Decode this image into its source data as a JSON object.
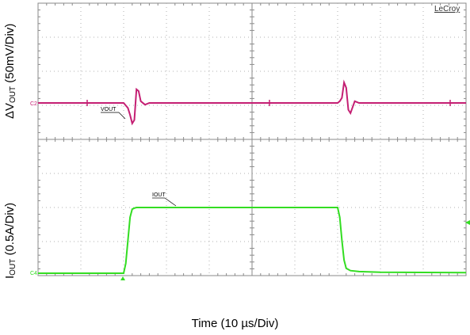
{
  "brand": "LeCroy",
  "ylabel_top_prefix": "ΔV",
  "ylabel_top_sub": "OUT",
  "ylabel_top_suffix": " (50mV/Div)",
  "ylabel_bottom_prefix": "I",
  "ylabel_bottom_sub": "OUT",
  "ylabel_bottom_suffix": " (0.5A/Div)",
  "xlabel": "Time (10 µs/Div)",
  "colors": {
    "vout": "#c41f73",
    "iout": "#33dd22",
    "grid": "#8a8a8a",
    "dots": "#b0b0b0"
  },
  "chart_data": {
    "type": "line",
    "xlabel": "Time (10 µs/Div)",
    "x_divisions": 10,
    "y_divisions": 8,
    "series": [
      {
        "name": "VOUT",
        "channel_marker": "C2",
        "unit_per_div": "50mV",
        "x": [
          0,
          2.0,
          2.1,
          2.15,
          2.2,
          2.25,
          2.3,
          2.35,
          2.4,
          2.5,
          2.6,
          7.0,
          7.05,
          7.1,
          7.15,
          7.2,
          7.25,
          7.3,
          7.4,
          7.5,
          10
        ],
        "y": [
          0,
          0,
          -0.15,
          -0.35,
          -0.6,
          -0.5,
          0.4,
          0.35,
          0.05,
          -0.05,
          0,
          0,
          0.05,
          0.15,
          0.6,
          0.45,
          -0.2,
          -0.3,
          0.05,
          0,
          0
        ]
      },
      {
        "name": "IOUT",
        "channel_marker": "C4",
        "unit_per_div": "0.5A",
        "x": [
          0,
          2.0,
          2.05,
          2.1,
          2.15,
          2.2,
          2.25,
          2.3,
          7.0,
          7.05,
          7.1,
          7.15,
          7.2,
          7.3,
          7.5,
          8.0,
          10
        ],
        "y": [
          0,
          0,
          0.3,
          1.0,
          1.7,
          1.95,
          1.98,
          2.0,
          2.0,
          1.7,
          1.0,
          0.4,
          0.15,
          0.08,
          0.05,
          0.03,
          0.02
        ]
      }
    ]
  }
}
